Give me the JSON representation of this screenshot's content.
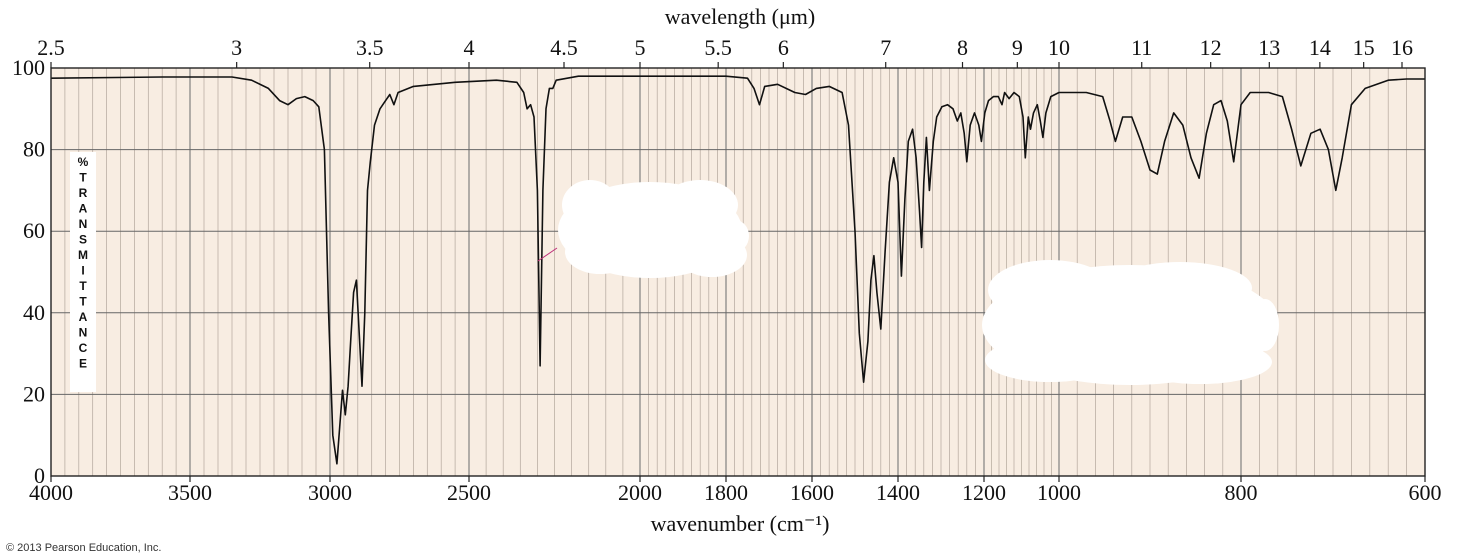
{
  "chart_data": {
    "type": "line",
    "title": "",
    "top_axis_label": "wavelength (μm)",
    "xlabel": "wavenumber (cm⁻¹)",
    "ylabel": "% TRANSMITTANCE",
    "xlim": [
      4000,
      600
    ],
    "ylim": [
      0,
      100
    ],
    "x_scale_note": "",
    "x_ticks": [
      "4000",
      "3500",
      "3000",
      "2500",
      "2000",
      "1800",
      "1600",
      "1400",
      "1200",
      "1000",
      "800",
      "600"
    ],
    "y_ticks": [
      "0",
      "20",
      "40",
      "60",
      "80",
      "100"
    ],
    "top_ticks": [
      "2.5",
      "3",
      "3.5",
      "4",
      "4.5",
      "5",
      "5.5",
      "6",
      "7",
      "8",
      "9",
      "10",
      "11",
      "12",
      "13",
      "14",
      "15",
      "16"
    ],
    "grid": true,
    "series": [
      {
        "name": "",
        "points": [
          [
            4000,
            97.5
          ],
          [
            3600,
            97.8
          ],
          [
            3350,
            97.8
          ],
          [
            3280,
            97
          ],
          [
            3220,
            95
          ],
          [
            3180,
            92
          ],
          [
            3150,
            91
          ],
          [
            3120,
            92.5
          ],
          [
            3090,
            93
          ],
          [
            3060,
            92
          ],
          [
            3040,
            90.5
          ],
          [
            3020,
            80
          ],
          [
            3005,
            40
          ],
          [
            2990,
            10
          ],
          [
            2975,
            3
          ],
          [
            2965,
            12
          ],
          [
            2955,
            21
          ],
          [
            2945,
            15
          ],
          [
            2935,
            22
          ],
          [
            2925,
            34
          ],
          [
            2915,
            45
          ],
          [
            2905,
            48
          ],
          [
            2895,
            35
          ],
          [
            2885,
            22
          ],
          [
            2875,
            40
          ],
          [
            2865,
            70
          ],
          [
            2855,
            77
          ],
          [
            2840,
            86
          ],
          [
            2820,
            90
          ],
          [
            2800,
            92
          ],
          [
            2785,
            93.5
          ],
          [
            2770,
            91
          ],
          [
            2755,
            94
          ],
          [
            2700,
            95.5
          ],
          [
            2550,
            96.5
          ],
          [
            2420,
            97
          ],
          [
            2360,
            96.5
          ],
          [
            2340,
            94
          ],
          [
            2330,
            90
          ],
          [
            2320,
            91
          ],
          [
            2310,
            88
          ],
          [
            2300,
            70
          ],
          [
            2292,
            27
          ],
          [
            2284,
            70
          ],
          [
            2275,
            90
          ],
          [
            2265,
            95
          ],
          [
            2255,
            95
          ],
          [
            2245,
            97
          ],
          [
            2180,
            98
          ],
          [
            2000,
            98
          ],
          [
            1800,
            98
          ],
          [
            1750,
            97.5
          ],
          [
            1735,
            95
          ],
          [
            1722,
            91
          ],
          [
            1710,
            95.5
          ],
          [
            1680,
            96
          ],
          [
            1640,
            94
          ],
          [
            1615,
            93.5
          ],
          [
            1590,
            95
          ],
          [
            1560,
            95.5
          ],
          [
            1530,
            94
          ],
          [
            1515,
            86
          ],
          [
            1500,
            60
          ],
          [
            1490,
            35
          ],
          [
            1480,
            23
          ],
          [
            1470,
            33
          ],
          [
            1463,
            48
          ],
          [
            1456,
            54
          ],
          [
            1449,
            45
          ],
          [
            1440,
            36
          ],
          [
            1430,
            55
          ],
          [
            1420,
            72
          ],
          [
            1410,
            78
          ],
          [
            1400,
            72
          ],
          [
            1392,
            49
          ],
          [
            1384,
            68
          ],
          [
            1376,
            82
          ],
          [
            1366,
            85
          ],
          [
            1358,
            78
          ],
          [
            1350,
            65
          ],
          [
            1345,
            56
          ],
          [
            1340,
            72
          ],
          [
            1334,
            83
          ],
          [
            1327,
            70
          ],
          [
            1318,
            82
          ],
          [
            1310,
            88
          ],
          [
            1298,
            90.5
          ],
          [
            1285,
            91
          ],
          [
            1272,
            90
          ],
          [
            1262,
            87
          ],
          [
            1254,
            89
          ],
          [
            1246,
            84
          ],
          [
            1240,
            77
          ],
          [
            1232,
            86
          ],
          [
            1222,
            89
          ],
          [
            1212,
            86
          ],
          [
            1206,
            82
          ],
          [
            1198,
            89
          ],
          [
            1188,
            92
          ],
          [
            1175,
            93
          ],
          [
            1162,
            93
          ],
          [
            1152,
            91
          ],
          [
            1145,
            94
          ],
          [
            1133,
            92.5
          ],
          [
            1120,
            94
          ],
          [
            1106,
            93
          ],
          [
            1096,
            88
          ],
          [
            1090,
            78
          ],
          [
            1082,
            88
          ],
          [
            1076,
            85
          ],
          [
            1068,
            89
          ],
          [
            1058,
            91
          ],
          [
            1050,
            87
          ],
          [
            1043,
            83
          ],
          [
            1035,
            89
          ],
          [
            1022,
            93
          ],
          [
            1000,
            94
          ],
          [
            970,
            94
          ],
          [
            952,
            93
          ],
          [
            944,
            87
          ],
          [
            938,
            82
          ],
          [
            930,
            88
          ],
          [
            920,
            88
          ],
          [
            910,
            82
          ],
          [
            900,
            75
          ],
          [
            892,
            74
          ],
          [
            884,
            82
          ],
          [
            874,
            89
          ],
          [
            864,
            86
          ],
          [
            855,
            78
          ],
          [
            846,
            73
          ],
          [
            838,
            84
          ],
          [
            830,
            91
          ],
          [
            822,
            92
          ],
          [
            815,
            87
          ],
          [
            808,
            77
          ],
          [
            800,
            91
          ],
          [
            790,
            94
          ],
          [
            770,
            94
          ],
          [
            755,
            93
          ],
          [
            745,
            85
          ],
          [
            735,
            76
          ],
          [
            724,
            84
          ],
          [
            714,
            85
          ],
          [
            705,
            80
          ],
          [
            697,
            70
          ],
          [
            690,
            78
          ],
          [
            680,
            91
          ],
          [
            665,
            95
          ],
          [
            640,
            97
          ],
          [
            620,
            97.3
          ],
          [
            600,
            97.3
          ]
        ]
      }
    ],
    "annotations": []
  },
  "footer": {
    "copyright": "© 2013 Pearson Education, Inc."
  }
}
